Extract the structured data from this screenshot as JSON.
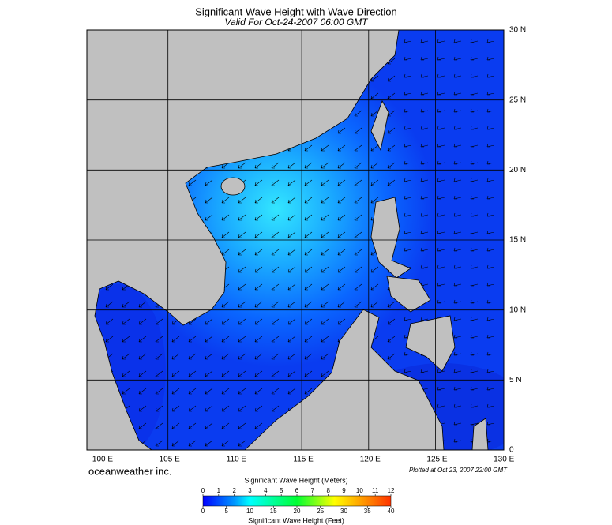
{
  "title": "Significant Wave Height with Wave Direction",
  "subtitle": "Valid For Oct-24-2007 06:00 GMT",
  "map": {
    "lat_labels": [
      "30 N",
      "25 N",
      "20 N",
      "15 N",
      "10 N",
      "5 N",
      "0"
    ],
    "lon_labels": [
      "100 E",
      "105 E",
      "110 E",
      "115 E",
      "120 E",
      "125 E",
      "130 E"
    ]
  },
  "credit": "oceanweather inc.",
  "plotted": "Plotted at Oct 23, 2007 22:00 GMT",
  "colorbar": {
    "meters_title": "Significant Wave Height (Meters)",
    "meters_ticks": [
      0,
      1,
      2,
      3,
      4,
      5,
      6,
      7,
      8,
      9,
      10,
      11,
      12
    ],
    "feet_ticks": [
      0,
      5,
      10,
      15,
      20,
      25,
      30,
      35,
      40
    ],
    "feet_title": "Significant Wave Height (Feet)"
  }
}
